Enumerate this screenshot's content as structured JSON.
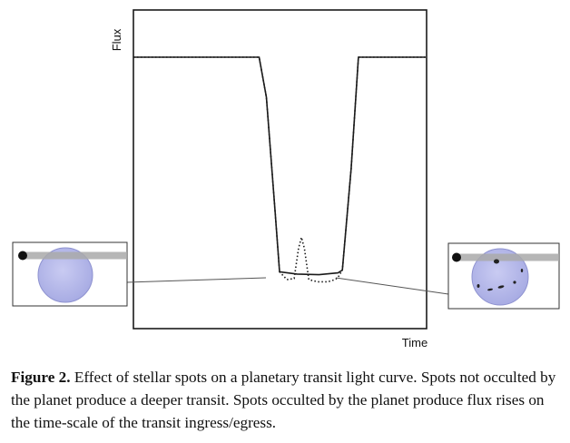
{
  "chart_data": {
    "type": "line",
    "xlabel": "Time",
    "ylabel": "Flux",
    "x_ticks": [],
    "y_ticks": [],
    "grid": false,
    "legend": "none",
    "series": [
      {
        "style": "solid",
        "x": [
          0,
          0.86,
          0.91,
          0.97,
          1.0,
          1.12,
          1.27,
          1.4,
          1.43,
          1.49,
          1.54,
          2.0
        ],
        "y": [
          1.0,
          1.0,
          0.82,
          0.3,
          0.035,
          0.025,
          0.022,
          0.03,
          0.043,
          0.5,
          1.0,
          1.0
        ]
      },
      {
        "style": "dotted",
        "x": [
          0,
          0.86,
          0.91,
          0.97,
          1.0,
          1.05,
          1.1,
          1.13,
          1.15,
          1.17,
          1.2,
          1.26,
          1.33,
          1.38,
          1.4,
          1.43,
          1.49,
          1.54,
          2.0
        ],
        "y": [
          1.0,
          1.0,
          0.82,
          0.3,
          0.035,
          0.0,
          0.005,
          0.14,
          0.19,
          0.14,
          0.0,
          -0.01,
          -0.01,
          0.0,
          0.01,
          0.043,
          0.5,
          1.0,
          1.0
        ]
      }
    ],
    "insets": [
      {
        "position": "left",
        "side": "ingress",
        "spots": false
      },
      {
        "position": "right",
        "side": "egress",
        "spots": true
      }
    ]
  },
  "colors": {
    "axes": "#1a1a1a",
    "curve": "#1a1a1a",
    "star_fill": "#b5b8ea",
    "star_stroke": "#8e92d0",
    "planet_track": "#a9a9a9",
    "connector": "#555555"
  },
  "caption": {
    "label": "Figure 2.",
    "text": "Effect of stellar spots on a planetary transit light curve. Spots not occulted by the planet produce a deeper transit. Spots occulted by the planet produce flux rises on the time-scale of the transit ingress/egress."
  }
}
